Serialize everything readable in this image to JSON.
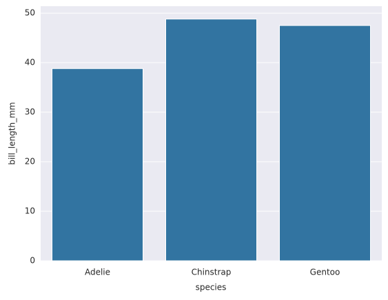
{
  "chart_data": {
    "type": "bar",
    "categories": [
      "Adelie",
      "Chinstrap",
      "Gentoo"
    ],
    "values": [
      38.8,
      48.8,
      47.5
    ],
    "color": "#3274a1",
    "xlabel": "species",
    "ylabel": "bill_length_mm",
    "ylim": [
      0,
      51.4
    ],
    "yticks": [
      0,
      10,
      20,
      30,
      40,
      50
    ],
    "grid": true
  }
}
